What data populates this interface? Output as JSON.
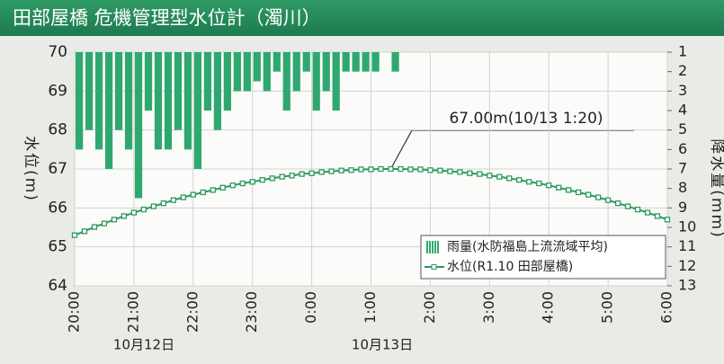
{
  "chart_data": {
    "type": "bar-line",
    "title": "田部屋橋 危機管理型水位計（濁川）",
    "y_label": "水位(m)",
    "y2_label": "降水量(mm)",
    "annotation": "67.00m(10/13 1:20)",
    "date_labels": [
      "10月12日",
      "10月13日"
    ],
    "categories": [
      "20:00",
      null,
      null,
      null,
      null,
      null,
      "21:00",
      null,
      null,
      null,
      null,
      null,
      "22:00",
      null,
      null,
      null,
      null,
      null,
      "23:00",
      null,
      null,
      null,
      null,
      null,
      "0:00",
      null,
      null,
      null,
      null,
      null,
      "1:00",
      null,
      null,
      null,
      null,
      null,
      "2:00",
      null,
      null,
      null,
      null,
      null,
      "3:00",
      null,
      null,
      null,
      null,
      null,
      "4:00",
      null,
      null,
      null,
      null,
      null,
      "5:00",
      null,
      null,
      null,
      null,
      null,
      "6:00"
    ],
    "ylim": [
      64,
      70
    ],
    "yticks": [
      64,
      65,
      66,
      67,
      68,
      69,
      70
    ],
    "y2lim": [
      1,
      13
    ],
    "y2ticks": [
      1,
      2,
      3,
      4,
      5,
      6,
      7,
      8,
      9,
      10,
      11,
      12,
      13
    ],
    "y2_reversed": true,
    "grid": true,
    "series": [
      {
        "name": "雨量(水防福島上流流域平均)",
        "type": "bar",
        "axis": "y2",
        "color": "#2fa870",
        "values": [
          6,
          5,
          6,
          7,
          5,
          6,
          8.5,
          4,
          6,
          6,
          5,
          6,
          7,
          4,
          5,
          4,
          3,
          3,
          2.5,
          3,
          2,
          4,
          3,
          2,
          4,
          3,
          4,
          2,
          2,
          2,
          2,
          null,
          2,
          null,
          null,
          null,
          null,
          null,
          null,
          null,
          null,
          null,
          null,
          null,
          null,
          null,
          null,
          null,
          null,
          null,
          null,
          null,
          null,
          null,
          null,
          null,
          null,
          null,
          null,
          null,
          null
        ]
      },
      {
        "name": "水位(R1.10 田部屋橋)",
        "type": "line",
        "color": "#2e9a5e",
        "values": [
          65.3,
          65.4,
          65.51,
          65.6,
          65.7,
          65.79,
          65.88,
          65.96,
          66.04,
          66.12,
          66.2,
          66.27,
          66.34,
          66.4,
          66.46,
          66.52,
          66.58,
          66.63,
          66.67,
          66.72,
          66.76,
          66.8,
          66.83,
          66.87,
          66.89,
          66.92,
          66.94,
          66.96,
          66.97,
          66.99,
          66.99,
          67.0,
          67.0,
          67.0,
          66.99,
          66.99,
          66.97,
          66.96,
          66.94,
          66.92,
          66.89,
          66.87,
          66.83,
          66.8,
          66.76,
          66.72,
          66.67,
          66.63,
          66.58,
          66.52,
          66.46,
          66.4,
          66.34,
          66.27,
          66.2,
          66.12,
          66.04,
          65.96,
          65.88,
          65.79,
          65.7
        ]
      }
    ]
  }
}
